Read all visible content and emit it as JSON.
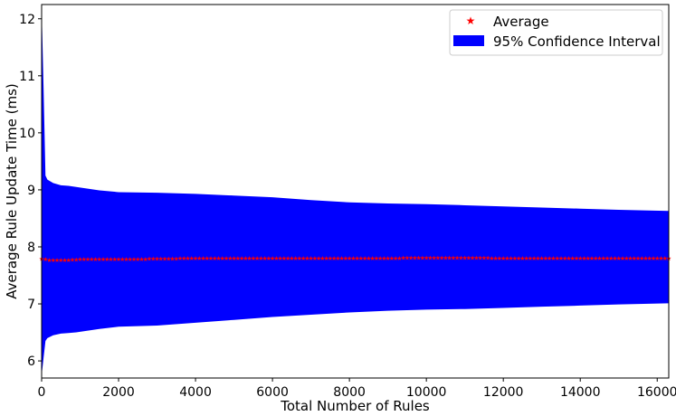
{
  "chart_data": {
    "type": "area",
    "xlabel": "Total Number of Rules",
    "ylabel": "Average Rule Update Time (ms)",
    "xlim": [
      0,
      16300
    ],
    "ylim": [
      5.7,
      12.25
    ],
    "xticks": [
      0,
      2000,
      4000,
      6000,
      8000,
      10000,
      12000,
      14000,
      16000
    ],
    "yticks": [
      6,
      7,
      8,
      9,
      10,
      11,
      12
    ],
    "grid": false,
    "legend_position": "top-right",
    "legend": [
      {
        "label": "Average",
        "marker": "star",
        "color": "#ff0000"
      },
      {
        "label": "95% Confidence Interval",
        "marker": "patch",
        "color": "#0000ff"
      }
    ],
    "series": [
      {
        "name": "Average",
        "kind": "markers",
        "color": "#ff0000",
        "x": [
          0,
          100,
          200,
          400,
          700,
          1000,
          1500,
          2000,
          3000,
          4000,
          5000,
          6000,
          7000,
          8000,
          9000,
          10000,
          11000,
          12000,
          13000,
          14000,
          15000,
          16300
        ],
        "y": [
          7.8,
          7.79,
          7.78,
          7.78,
          7.78,
          7.79,
          7.79,
          7.79,
          7.8,
          7.81,
          7.81,
          7.81,
          7.81,
          7.81,
          7.81,
          7.82,
          7.82,
          7.81,
          7.81,
          7.81,
          7.81,
          7.81
        ]
      },
      {
        "name": "95% Confidence Interval",
        "kind": "band",
        "color": "#0000ff",
        "x": [
          0,
          50,
          100,
          150,
          300,
          500,
          700,
          900,
          1200,
          1500,
          2000,
          3000,
          4000,
          5000,
          6000,
          7000,
          8000,
          9000,
          10000,
          11000,
          12000,
          13000,
          14000,
          15000,
          16300
        ],
        "upper": [
          12.2,
          10.8,
          9.25,
          9.18,
          9.12,
          9.08,
          9.07,
          9.05,
          9.02,
          8.99,
          8.96,
          8.95,
          8.93,
          8.9,
          8.87,
          8.82,
          8.78,
          8.76,
          8.75,
          8.73,
          8.71,
          8.69,
          8.67,
          8.65,
          8.63
        ],
        "lower": [
          5.75,
          6.05,
          6.35,
          6.4,
          6.45,
          6.48,
          6.49,
          6.5,
          6.53,
          6.56,
          6.6,
          6.62,
          6.67,
          6.72,
          6.77,
          6.81,
          6.85,
          6.88,
          6.9,
          6.91,
          6.93,
          6.95,
          6.97,
          6.99,
          7.01
        ]
      }
    ]
  }
}
